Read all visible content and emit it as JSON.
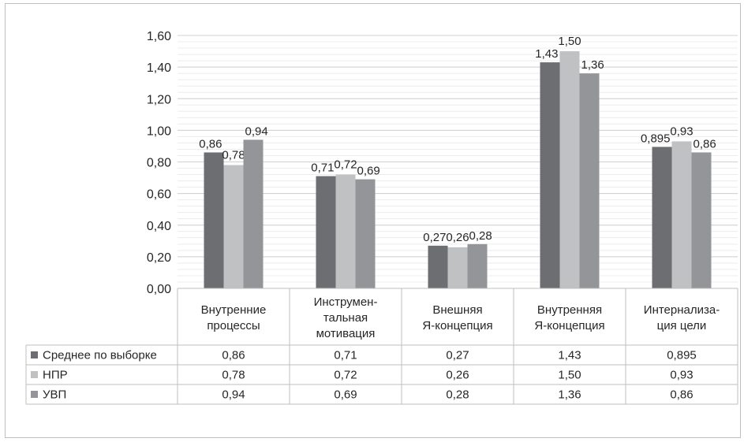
{
  "chart_data": {
    "type": "bar",
    "categories": [
      [
        "Внутренние",
        "процессы"
      ],
      [
        "Инструмен-",
        "тальная",
        "мотивация"
      ],
      [
        "Внешняя",
        "Я-концепция"
      ],
      [
        "Внутренняя",
        "Я-концепция"
      ],
      [
        "Интернализа-",
        "ция цели"
      ]
    ],
    "series": [
      {
        "name": "Среднее по выборке",
        "color": "#6d6e71",
        "values": [
          0.86,
          0.71,
          0.27,
          1.43,
          0.895
        ],
        "labels": [
          "0,86",
          "0,71",
          "0,27",
          "1,43",
          "0,895"
        ]
      },
      {
        "name": "НПР",
        "color": "#c0c1c3",
        "values": [
          0.78,
          0.72,
          0.26,
          1.5,
          0.93
        ],
        "labels": [
          "0,78",
          "0,72",
          "0,26",
          "1,50",
          "0,93"
        ]
      },
      {
        "name": "УВП",
        "color": "#939598",
        "values": [
          0.94,
          0.69,
          0.28,
          1.36,
          0.86
        ],
        "labels": [
          "0,94",
          "0,69",
          "0,28",
          "1,36",
          "0,86"
        ]
      }
    ],
    "yticks": [
      "0,00",
      "0,20",
      "0,40",
      "0,60",
      "0,80",
      "1,00",
      "1,20",
      "1,40",
      "1,60"
    ],
    "ylim": [
      0,
      1.6
    ],
    "grid": true,
    "legend": "data-table-below"
  }
}
